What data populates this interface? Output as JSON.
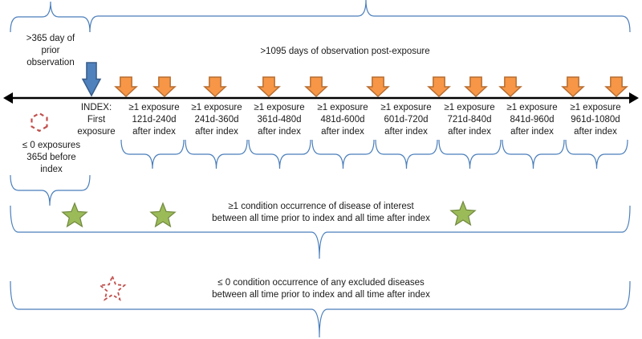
{
  "colors": {
    "bracket": "#4a7ebb",
    "timeline": "#000000",
    "index_arrow_fill": "#4f81bd",
    "index_arrow_stroke": "#385d8a",
    "exposure_arrow_fill": "#f79646",
    "exposure_arrow_stroke": "#b66d31",
    "star_fill": "#9bbb59",
    "star_stroke": "#71893f",
    "excluded_outline": "#c0504d"
  },
  "icons": {
    "index_marker": "down-arrow-blue",
    "exposure_marker": "down-arrow-orange",
    "condition_marker": "star-green",
    "no_exposure_marker": "dashed-hexagon-red",
    "excluded_marker": "dashed-star-red"
  },
  "prior": {
    "line1": ">365 day of",
    "line2": "prior",
    "line3": "observation"
  },
  "post": {
    "label": ">1095 days of observation post-exposure"
  },
  "index": {
    "line1": "INDEX:",
    "line2": "First",
    "line3": "exposure"
  },
  "no_exposure": {
    "line1": "≤ 0 exposures",
    "line2": "365d before",
    "line3": "index"
  },
  "windows": [
    {
      "line1": "≥1 exposure",
      "line2": "121d-240d",
      "line3": "after index"
    },
    {
      "line1": "≥1 exposure",
      "line2": "241d-360d",
      "line3": "after index"
    },
    {
      "line1": "≥1 exposure",
      "line2": "361d-480d",
      "line3": "after index"
    },
    {
      "line1": "≥1 exposure",
      "line2": "481d-600d",
      "line3": "after index"
    },
    {
      "line1": "≥1 exposure",
      "line2": "601d-720d",
      "line3": "after index"
    },
    {
      "line1": "≥1 exposure",
      "line2": "721d-840d",
      "line3": "after index"
    },
    {
      "line1": "≥1 exposure",
      "line2": "841d-960d",
      "line3": "after index"
    },
    {
      "line1": "≥1 exposure",
      "line2": "961d-1080d",
      "line3": "after index"
    }
  ],
  "condition": {
    "line1": "≥1 condition occurrence of disease of interest",
    "line2": "between all time prior to index and all time after index"
  },
  "excluded": {
    "line1": "≤ 0 condition occurrence of any excluded diseases",
    "line2": "between all time prior to index and all time after index"
  }
}
